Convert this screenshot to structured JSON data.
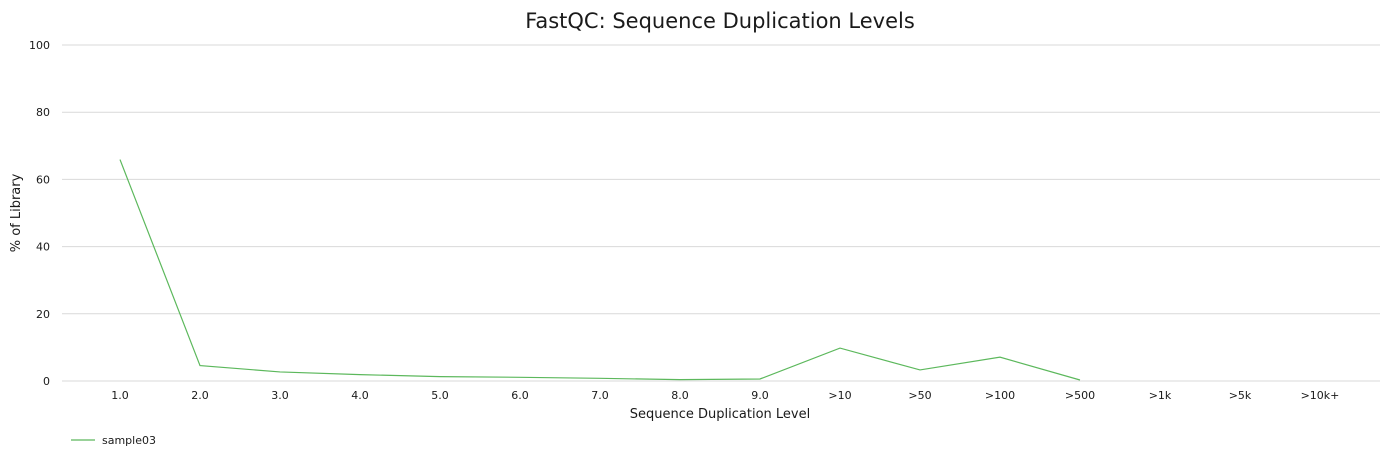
{
  "chart_data": {
    "type": "line",
    "title": "FastQC: Sequence Duplication Levels",
    "xlabel": "Sequence Duplication Level",
    "ylabel": "% of Library",
    "ylim": [
      0,
      100
    ],
    "yticks": [
      "0",
      "20",
      "40",
      "60",
      "80",
      "100"
    ],
    "categories": [
      "1.0",
      "2.0",
      "3.0",
      "4.0",
      "5.0",
      "6.0",
      "7.0",
      "8.0",
      "9.0",
      ">10",
      ">50",
      ">100",
      ">500",
      ">1k",
      ">5k",
      ">10k+"
    ],
    "grid": true,
    "legend_position": "bottom-left",
    "series": [
      {
        "name": "sample03",
        "color": "#5cb85c",
        "values": [
          65.9,
          4.6,
          2.7,
          1.9,
          1.3,
          1.1,
          0.8,
          0.4,
          0.6,
          9.8,
          3.3,
          7.1,
          0.3,
          null,
          null,
          null
        ]
      }
    ]
  }
}
